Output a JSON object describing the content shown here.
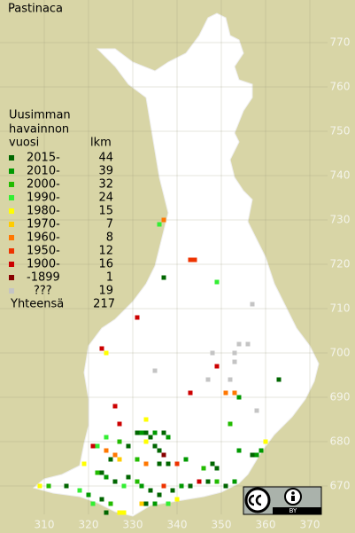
{
  "title": "Pastinaca",
  "legend": {
    "heading": [
      "Uusimman",
      "havainnon",
      "vuosi"
    ],
    "count_heading": "lkm",
    "items": [
      {
        "label": "2015-",
        "count": 44,
        "color": "#006600"
      },
      {
        "label": "2010-",
        "count": 39,
        "color": "#009900"
      },
      {
        "label": "2000-",
        "count": 32,
        "color": "#22bb00"
      },
      {
        "label": "1990-",
        "count": 24,
        "color": "#33ee33"
      },
      {
        "label": "1980-",
        "count": 15,
        "color": "#ffff00"
      },
      {
        "label": "1970-",
        "count": 7,
        "color": "#ffcc00"
      },
      {
        "label": "1960-",
        "count": 8,
        "color": "#ff7700"
      },
      {
        "label": "1950-",
        "count": 12,
        "color": "#ee3300"
      },
      {
        "label": "1900-",
        "count": 16,
        "color": "#cc0000"
      },
      {
        "label": "-1899",
        "count": 1,
        "color": "#880000"
      },
      {
        "label": "???",
        "count": 19,
        "color": "#c4c4c4"
      }
    ],
    "total_label": "Yhteensä",
    "total": 217
  },
  "x_ticks": [
    310,
    320,
    330,
    340,
    350,
    360,
    370
  ],
  "y_ticks": [
    670,
    680,
    690,
    700,
    710,
    720,
    730,
    740,
    750,
    760,
    770
  ],
  "squares": [
    [
      337,
      730,
      6
    ],
    [
      336,
      729,
      3
    ],
    [
      343,
      721,
      7
    ],
    [
      344,
      721,
      7
    ],
    [
      337,
      717,
      0
    ],
    [
      349,
      716,
      3
    ],
    [
      357,
      711,
      10
    ],
    [
      331,
      708,
      8
    ],
    [
      323,
      701,
      8
    ],
    [
      324,
      700,
      4
    ],
    [
      354,
      702,
      10
    ],
    [
      356,
      702,
      10
    ],
    [
      348,
      700,
      10
    ],
    [
      353,
      700,
      10
    ],
    [
      353,
      698,
      10
    ],
    [
      349,
      697,
      8
    ],
    [
      335,
      696,
      10
    ],
    [
      363,
      694,
      0
    ],
    [
      347,
      694,
      10
    ],
    [
      352,
      694,
      10
    ],
    [
      343,
      691,
      8
    ],
    [
      351,
      691,
      6
    ],
    [
      353,
      691,
      6
    ],
    [
      354,
      690,
      1
    ],
    [
      326,
      688,
      8
    ],
    [
      358,
      687,
      10
    ],
    [
      352,
      684,
      2
    ],
    [
      360,
      680,
      4
    ],
    [
      327,
      684,
      8
    ],
    [
      333,
      685,
      4
    ],
    [
      331,
      682,
      0
    ],
    [
      332,
      682,
      1
    ],
    [
      333,
      682,
      0
    ],
    [
      334,
      681,
      0
    ],
    [
      335,
      682,
      1
    ],
    [
      337,
      682,
      0
    ],
    [
      338,
      681,
      1
    ],
    [
      324,
      681,
      3
    ],
    [
      321,
      679,
      8
    ],
    [
      322,
      679,
      3
    ],
    [
      327,
      680,
      2
    ],
    [
      329,
      679,
      0
    ],
    [
      333,
      680,
      4
    ],
    [
      335,
      679,
      0
    ],
    [
      336,
      678,
      0
    ],
    [
      337,
      677,
      9
    ],
    [
      324,
      678,
      6
    ],
    [
      326,
      677,
      6
    ],
    [
      327,
      676,
      5
    ],
    [
      325,
      676,
      0
    ],
    [
      331,
      676,
      2
    ],
    [
      333,
      675,
      6
    ],
    [
      336,
      675,
      0
    ],
    [
      338,
      675,
      0
    ],
    [
      340,
      675,
      7
    ],
    [
      342,
      676,
      1
    ],
    [
      346,
      674,
      2
    ],
    [
      348,
      675,
      0
    ],
    [
      349,
      674,
      0
    ],
    [
      354,
      678,
      1
    ],
    [
      357,
      677,
      0
    ],
    [
      358,
      677,
      1
    ],
    [
      359,
      678,
      1
    ],
    [
      319,
      675,
      4
    ],
    [
      322,
      673,
      2
    ],
    [
      323,
      673,
      0
    ],
    [
      324,
      672,
      1
    ],
    [
      326,
      671,
      0
    ],
    [
      328,
      670,
      3
    ],
    [
      329,
      672,
      0
    ],
    [
      331,
      671,
      2
    ],
    [
      332,
      670,
      1
    ],
    [
      334,
      669,
      0
    ],
    [
      336,
      668,
      0
    ],
    [
      337,
      670,
      7
    ],
    [
      339,
      669,
      0
    ],
    [
      341,
      670,
      1
    ],
    [
      343,
      670,
      0
    ],
    [
      345,
      671,
      8
    ],
    [
      347,
      671,
      0
    ],
    [
      349,
      671,
      2
    ],
    [
      351,
      670,
      0
    ],
    [
      353,
      671,
      1
    ],
    [
      309,
      670,
      4
    ],
    [
      311,
      670,
      2
    ],
    [
      315,
      670,
      0
    ],
    [
      318,
      669,
      3
    ],
    [
      320,
      668,
      1
    ],
    [
      323,
      667,
      0
    ],
    [
      325,
      666,
      2
    ],
    [
      327,
      664,
      4
    ],
    [
      328,
      664,
      4
    ],
    [
      332,
      666,
      5
    ],
    [
      333,
      666,
      0
    ],
    [
      335,
      666,
      1
    ],
    [
      338,
      666,
      3
    ],
    [
      340,
      667,
      4
    ],
    [
      324,
      664,
      0
    ],
    [
      321,
      666,
      3
    ]
  ],
  "license": "BY"
}
